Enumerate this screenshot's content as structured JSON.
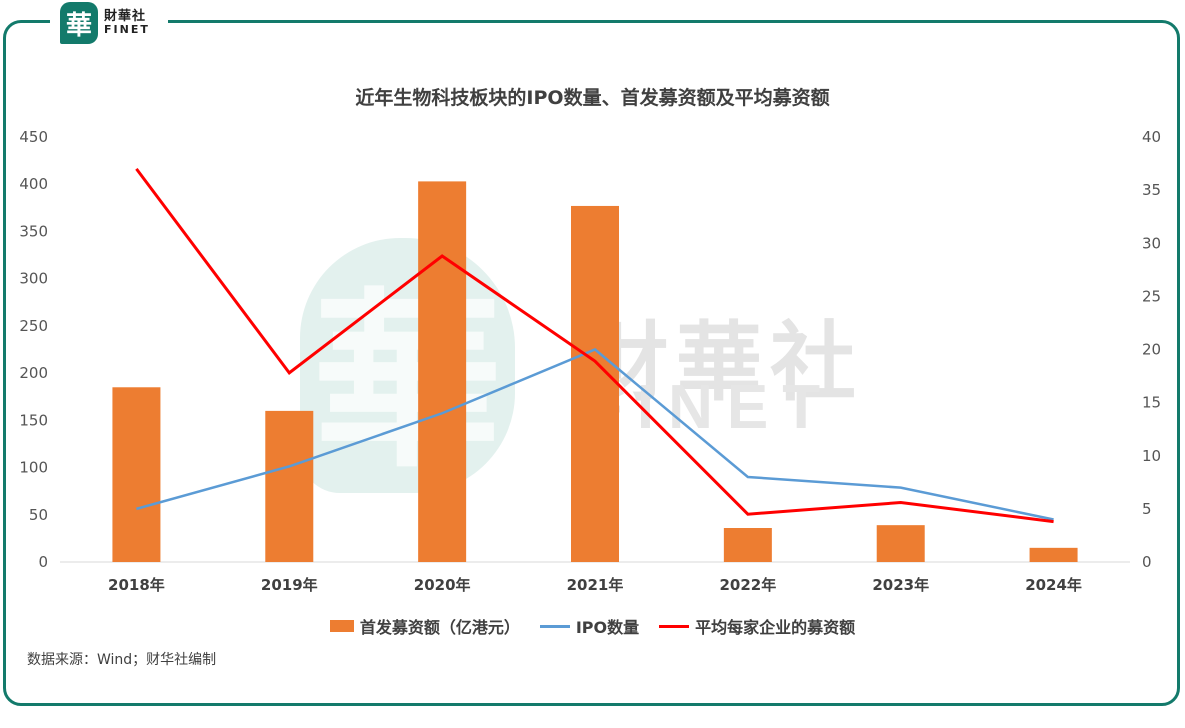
{
  "logo": {
    "seal_char": "華",
    "cn": "財華社",
    "en": "FINET"
  },
  "watermark": {
    "seal_char": "華",
    "cn": "財華社",
    "en": "FINET"
  },
  "source": "数据来源：Wind；财华社编制",
  "colors": {
    "frame": "#137a6b",
    "bar": "#ed7d31",
    "ipo_line": "#5b9bd5",
    "avg_line": "#ff0000"
  },
  "chart_data": {
    "type": "bar",
    "title": "近年生物科技板块的IPO数量、首发募资额及平均募资额",
    "categories": [
      "2018年",
      "2019年",
      "2020年",
      "2021年",
      "2022年",
      "2023年",
      "2024年"
    ],
    "y_left": {
      "ylim": [
        0,
        450
      ],
      "ticks": [
        "0",
        "50",
        "100",
        "150",
        "200",
        "250",
        "300",
        "350",
        "400",
        "450"
      ]
    },
    "y_right": {
      "ylim": [
        0,
        40
      ],
      "ticks": [
        "0",
        "5",
        "10",
        "15",
        "20",
        "25",
        "30",
        "35",
        "40"
      ]
    },
    "series": [
      {
        "name": "首发募资额（亿港元）",
        "type": "bar",
        "axis": "left",
        "values": [
          185,
          160,
          403,
          377,
          36,
          39,
          15
        ]
      },
      {
        "name": "IPO数量",
        "type": "line",
        "axis": "right",
        "values": [
          5,
          9,
          14,
          20,
          8,
          7,
          4
        ]
      },
      {
        "name": "平均每家企业的募资额",
        "type": "line",
        "axis": "right",
        "values": [
          37,
          17.8,
          28.8,
          18.9,
          4.5,
          5.6,
          3.8
        ]
      }
    ],
    "grid": false,
    "legend": "bottom"
  }
}
